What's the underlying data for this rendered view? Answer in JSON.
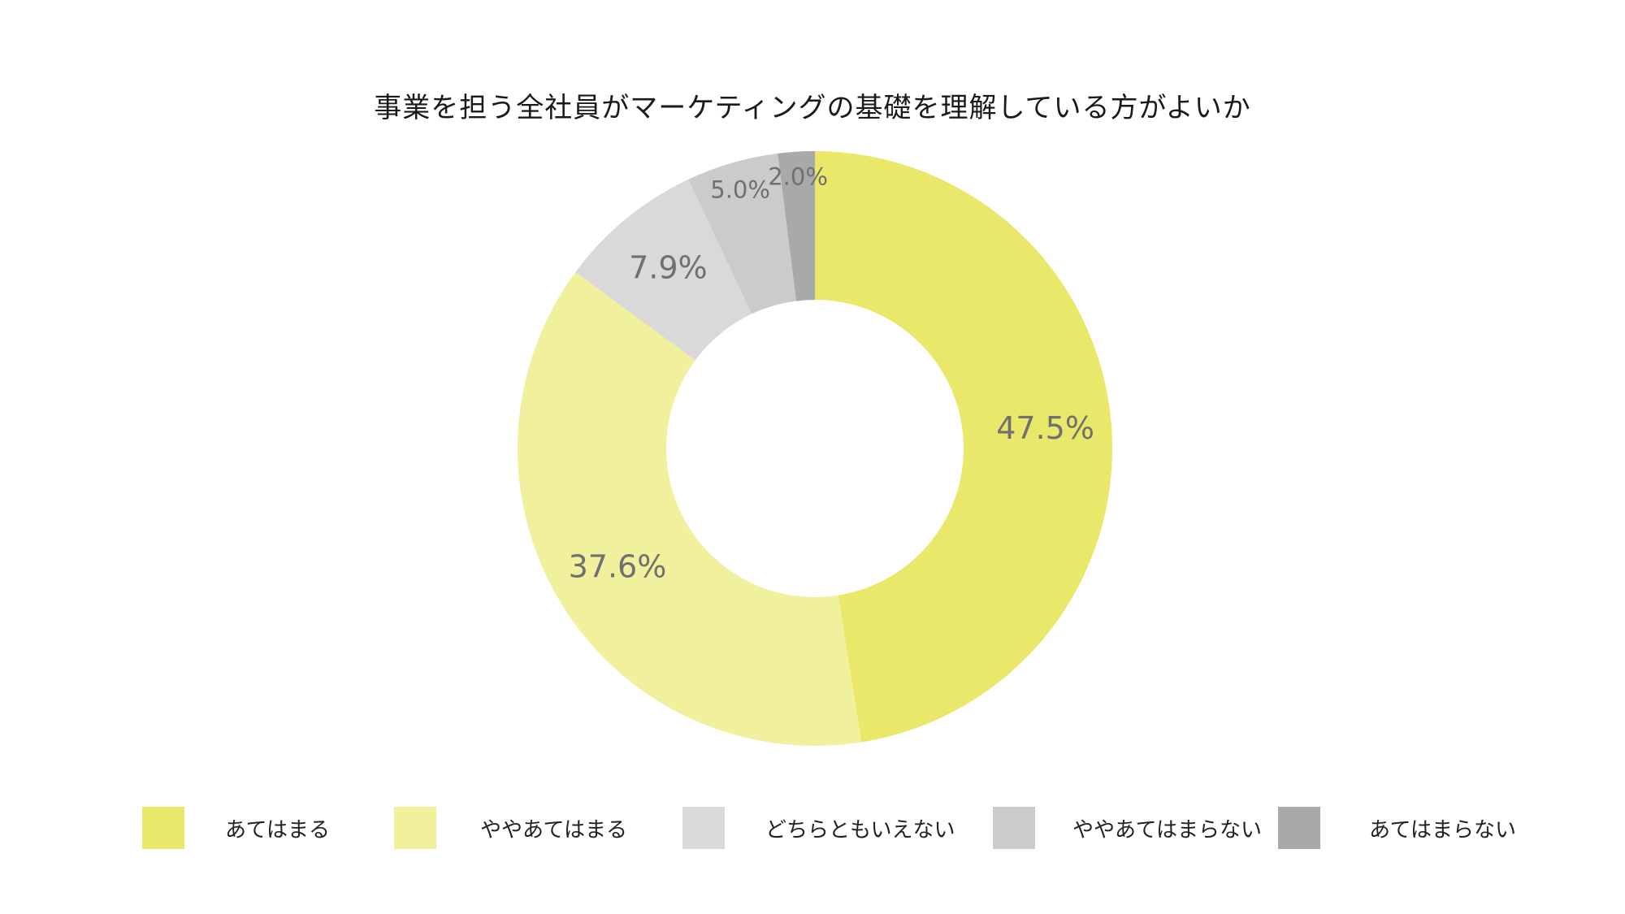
{
  "chart_data": {
    "type": "pie",
    "donut": true,
    "title": "事業を担う全社員がマーケティングの基礎を理解している方がよいか",
    "categories": [
      "あてはまる",
      "ややあてはまる",
      "どちらともいえない",
      "ややあてはまらない",
      "あてはまらない"
    ],
    "values": [
      47.5,
      37.6,
      7.9,
      5.0,
      2.0
    ],
    "value_labels": [
      "47.5%",
      "37.6%",
      "7.9%",
      "5.0%",
      "2.0%"
    ],
    "colors": [
      "#e9e86a",
      "#f1f09c",
      "#d9d9d9",
      "#cbcbcb",
      "#a9a9a9"
    ],
    "legend_position": "bottom",
    "start_angle": "top",
    "direction": "clockwise"
  }
}
